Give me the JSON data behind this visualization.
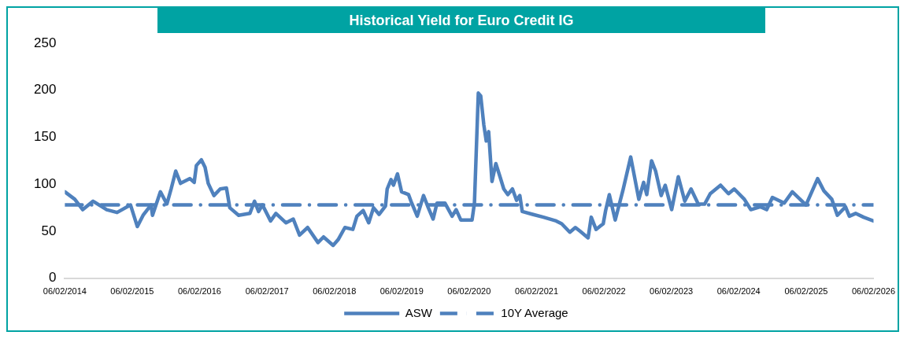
{
  "chart_data": {
    "type": "line",
    "title": "Historical Yield for Euro Credit IG",
    "x": [
      "2014-02-06",
      "2014-04-01",
      "2014-05-14",
      "2014-07-09",
      "2014-09-21",
      "2014-11-16",
      "2015-01-28",
      "2015-03-06",
      "2015-04-06",
      "2015-05-19",
      "2015-05-27",
      "2015-07-09",
      "2015-08-13",
      "2015-09-05",
      "2015-09-30",
      "2015-10-26",
      "2015-12-16",
      "2016-01-08",
      "2016-01-20",
      "2016-02-16",
      "2016-03-07",
      "2016-03-24",
      "2016-04-24",
      "2016-05-28",
      "2016-07-01",
      "2016-07-19",
      "2016-09-05",
      "2016-11-05",
      "2016-11-30",
      "2016-12-22",
      "2017-01-12",
      "2017-02-25",
      "2017-03-26",
      "2017-05-20",
      "2017-06-28",
      "2017-08-01",
      "2017-09-14",
      "2017-11-09",
      "2017-12-09",
      "2018-01-30",
      "2018-02-26",
      "2018-04-04",
      "2018-05-17",
      "2018-06-08",
      "2018-07-12",
      "2018-08-11",
      "2018-09-06",
      "2018-10-06",
      "2018-11-10",
      "2018-11-19",
      "2018-12-10",
      "2018-12-23",
      "2019-01-14",
      "2019-02-05",
      "2019-03-15",
      "2019-03-28",
      "2019-05-01",
      "2019-06-04",
      "2019-06-30",
      "2019-07-26",
      "2019-08-16",
      "2019-09-28",
      "2019-11-06",
      "2019-11-28",
      "2019-12-23",
      "2020-02-22",
      "2020-03-06",
      "2020-03-27",
      "2020-04-09",
      "2020-04-26",
      "2020-05-09",
      "2020-05-22",
      "2020-06-09",
      "2020-06-30",
      "2020-07-21",
      "2020-08-12",
      "2020-09-03",
      "2020-09-28",
      "2020-10-20",
      "2020-11-07",
      "2020-11-20",
      "2021-01-15",
      "2021-03-15",
      "2021-05-23",
      "2021-06-22",
      "2021-08-05",
      "2021-09-04",
      "2021-09-30",
      "2021-11-12",
      "2021-11-29",
      "2021-12-25",
      "2022-02-02",
      "2022-02-15",
      "2022-03-07",
      "2022-04-08",
      "2022-05-19",
      "2022-07-01",
      "2022-08-14",
      "2022-09-09",
      "2022-09-26",
      "2022-10-22",
      "2022-11-13",
      "2022-12-13",
      "2023-01-04",
      "2023-02-08",
      "2023-03-16",
      "2023-04-20",
      "2023-05-24",
      "2023-07-02",
      "2023-08-06",
      "2023-09-05",
      "2023-10-31",
      "2023-12-13",
      "2024-01-13",
      "2024-03-08",
      "2024-04-12",
      "2024-06-03",
      "2024-07-07",
      "2024-08-07",
      "2024-10-10",
      "2024-11-23",
      "2025-02-05",
      "2025-04-09",
      "2025-05-13",
      "2025-06-25",
      "2025-07-25",
      "2025-09-07",
      "2025-09-28",
      "2025-11-01",
      "2025-12-14",
      "2026-02-06"
    ],
    "series": [
      {
        "name": "ASW",
        "color": "#4f81bd",
        "line_style": "solid",
        "values": [
          92,
          84,
          73,
          82,
          73,
          70,
          78,
          55,
          67,
          78,
          67,
          92,
          79,
          95,
          114,
          101,
          106,
          102,
          120,
          126,
          118,
          101,
          88,
          95,
          96,
          75,
          67,
          69,
          82,
          71,
          78,
          61,
          69,
          59,
          63,
          46,
          54,
          38,
          44,
          35,
          41,
          54,
          52,
          66,
          72,
          59,
          75,
          68,
          77,
          95,
          105,
          99,
          111,
          92,
          89,
          82,
          66,
          88,
          75,
          63,
          80,
          80,
          66,
          73,
          62,
          62,
          80,
          197,
          194,
          163,
          146,
          156,
          103,
          122,
          109,
          95,
          89,
          95,
          83,
          88,
          71,
          68,
          65,
          61,
          58,
          49,
          54,
          50,
          43,
          65,
          52,
          58,
          72,
          89,
          62,
          93,
          129,
          84,
          102,
          89,
          125,
          114,
          88,
          99,
          73,
          108,
          82,
          95,
          79,
          79,
          90,
          99,
          90,
          95,
          84,
          73,
          76,
          73,
          86,
          80,
          92,
          78,
          106,
          93,
          84,
          67,
          76,
          66,
          69,
          65,
          61
        ]
      },
      {
        "name": "10Y Average",
        "color": "#4f81bd",
        "line_style": "dashed",
        "x": [
          "2014-02-06",
          "2026-02-06"
        ],
        "values": [
          78,
          78
        ]
      }
    ],
    "xlim": [
      "2014-02-06",
      "2026-02-06"
    ],
    "xticks": [
      {
        "value": "2014-02-06",
        "label": "06/02/2014"
      },
      {
        "value": "2015-02-06",
        "label": "06/02/2015"
      },
      {
        "value": "2016-02-06",
        "label": "06/02/2016"
      },
      {
        "value": "2017-02-06",
        "label": "06/02/2017"
      },
      {
        "value": "2018-02-06",
        "label": "06/02/2018"
      },
      {
        "value": "2019-02-06",
        "label": "06/02/2019"
      },
      {
        "value": "2020-02-06",
        "label": "06/02/2020"
      },
      {
        "value": "2021-02-06",
        "label": "06/02/2021"
      },
      {
        "value": "2022-02-06",
        "label": "06/02/2022"
      },
      {
        "value": "2023-02-06",
        "label": "06/02/2023"
      },
      {
        "value": "2024-02-06",
        "label": "06/02/2024"
      },
      {
        "value": "2025-02-06",
        "label": "06/02/2025"
      },
      {
        "value": "2026-02-06",
        "label": "06/02/2026"
      }
    ],
    "ylim": [
      0,
      250
    ],
    "yticks": [
      0,
      50,
      100,
      150,
      200,
      250
    ],
    "grid": false,
    "legend": "bottom",
    "marker": "none"
  }
}
